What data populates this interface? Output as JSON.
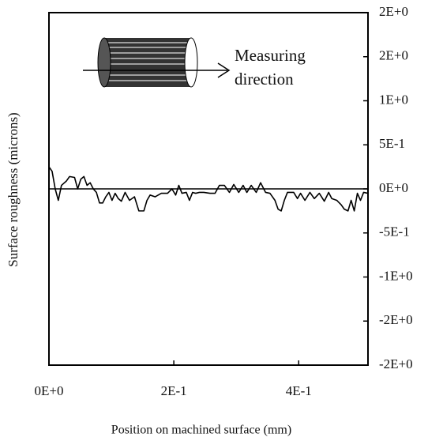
{
  "chart_data": {
    "type": "line",
    "x_label": "Position on machined surface (mm)",
    "y_label": "Surface roughness (microns)",
    "annotation": [
      "Measuring",
      "direction"
    ],
    "xlim": [
      0,
      0.511
    ],
    "ylim": [
      -2,
      2
    ],
    "xticks": [
      {
        "value": 0,
        "label": "0E+0"
      },
      {
        "value": 0.2,
        "label": "2E-1"
      },
      {
        "value": 0.4,
        "label": "4E-1"
      }
    ],
    "yticks": [
      {
        "value": 2,
        "label": "2E+0"
      },
      {
        "value": 1.5,
        "label": "2E+0"
      },
      {
        "value": 1,
        "label": "1E+0"
      },
      {
        "value": 0.5,
        "label": "5E-1"
      },
      {
        "value": 0,
        "label": "0E+0"
      },
      {
        "value": -0.5,
        "label": "-5E-1"
      },
      {
        "value": -1,
        "label": "-1E+0"
      },
      {
        "value": -1.5,
        "label": "-2E+0"
      },
      {
        "value": -2,
        "label": "-2E+0"
      }
    ],
    "yaxis_side": "right",
    "reference_line": 0,
    "color": "#000000",
    "x": [
      0,
      0.005,
      0.01,
      0.015,
      0.02,
      0.028,
      0.033,
      0.041,
      0.046,
      0.051,
      0.056,
      0.061,
      0.066,
      0.071,
      0.076,
      0.081,
      0.086,
      0.091,
      0.096,
      0.101,
      0.106,
      0.111,
      0.116,
      0.122,
      0.129,
      0.137,
      0.144,
      0.152,
      0.157,
      0.162,
      0.17,
      0.18,
      0.19,
      0.197,
      0.203,
      0.208,
      0.213,
      0.22,
      0.225,
      0.23,
      0.235,
      0.241,
      0.248,
      0.258,
      0.266,
      0.273,
      0.281,
      0.289,
      0.296,
      0.304,
      0.311,
      0.317,
      0.324,
      0.332,
      0.339,
      0.347,
      0.354,
      0.362,
      0.367,
      0.372,
      0.377,
      0.382,
      0.392,
      0.398,
      0.403,
      0.41,
      0.418,
      0.425,
      0.433,
      0.441,
      0.448,
      0.453,
      0.461,
      0.468,
      0.473,
      0.479,
      0.484,
      0.489,
      0.494,
      0.499,
      0.504,
      0.511
    ],
    "values": [
      0.25,
      0.2,
      0,
      -0.13,
      0.04,
      0.09,
      0.14,
      0.13,
      0,
      0.11,
      0.14,
      0.04,
      0.07,
      0,
      -0.04,
      -0.16,
      -0.16,
      -0.09,
      -0.04,
      -0.13,
      -0.05,
      -0.11,
      -0.14,
      -0.04,
      -0.13,
      -0.09,
      -0.25,
      -0.25,
      -0.13,
      -0.07,
      -0.09,
      -0.05,
      -0.05,
      0,
      -0.07,
      0.04,
      -0.05,
      -0.04,
      -0.13,
      -0.04,
      -0.05,
      -0.04,
      -0.04,
      -0.05,
      -0.05,
      0.04,
      0.04,
      -0.04,
      0.05,
      -0.04,
      0.04,
      -0.04,
      0.04,
      -0.04,
      0.07,
      -0.04,
      -0.05,
      -0.13,
      -0.23,
      -0.25,
      -0.13,
      -0.04,
      -0.04,
      -0.11,
      -0.05,
      -0.13,
      -0.04,
      -0.11,
      -0.05,
      -0.14,
      -0.04,
      -0.11,
      -0.13,
      -0.18,
      -0.23,
      -0.25,
      -0.13,
      -0.25,
      -0.05,
      -0.13,
      -0.04,
      -0.05
    ]
  }
}
